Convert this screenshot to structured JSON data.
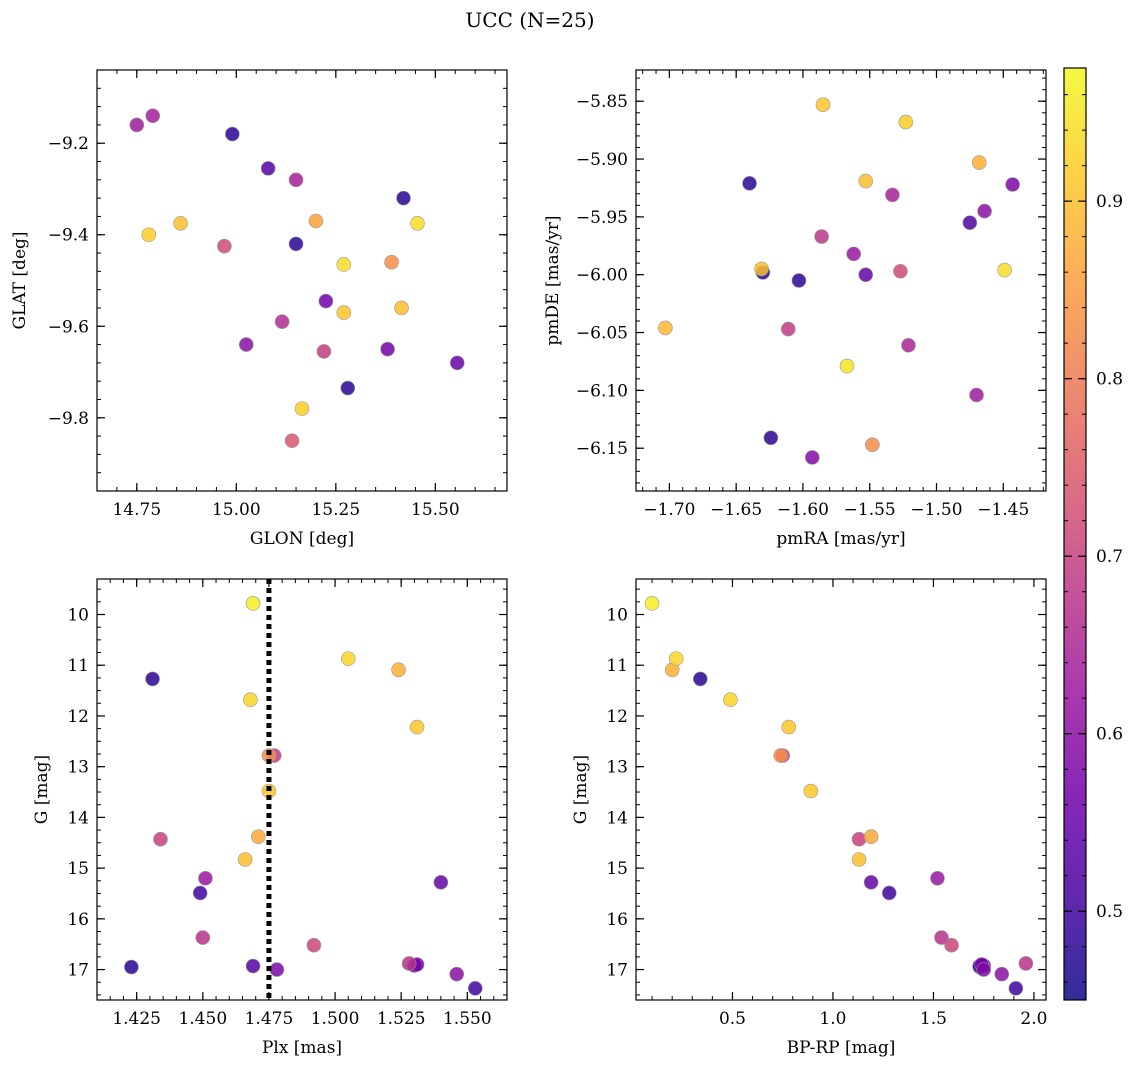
{
  "figure": {
    "title": "UCC (N=25)"
  },
  "colorbar": {
    "range": [
      0.45,
      0.975
    ],
    "ticks": [
      0.5,
      0.6,
      0.7,
      0.8,
      0.9
    ],
    "tick_labels": [
      "0.5",
      "0.6",
      "0.7",
      "0.8",
      "0.9"
    ],
    "colormap": [
      "#0d0887",
      "#46039f",
      "#7201a8",
      "#9c179e",
      "#bd3786",
      "#d8576b",
      "#ed7953",
      "#fb9f3a",
      "#fdca26",
      "#f0f921"
    ]
  },
  "chart_data": [
    {
      "type": "scatter",
      "id": "glon-glat",
      "xlabel": "GLON [deg]",
      "ylabel": "GLAT [deg]",
      "xlim": [
        14.65,
        15.68
      ],
      "ylim": [
        -9.96,
        -9.04
      ],
      "xticks": [
        14.75,
        15.0,
        15.25,
        15.5
      ],
      "xtick_labels": [
        "14.75",
        "15.00",
        "15.25",
        "15.50"
      ],
      "yticks": [
        -9.2,
        -9.4,
        -9.6,
        -9.8
      ],
      "ytick_labels": [
        "−9.2",
        "−9.4",
        "−9.6",
        "−9.8"
      ],
      "points": [
        {
          "x": 14.75,
          "y": -9.16,
          "c": 0.63
        },
        {
          "x": 14.79,
          "y": -9.14,
          "c": 0.64
        },
        {
          "x": 14.99,
          "y": -9.18,
          "c": 0.48
        },
        {
          "x": 15.08,
          "y": -9.255,
          "c": 0.53
        },
        {
          "x": 15.15,
          "y": -9.28,
          "c": 0.64
        },
        {
          "x": 15.42,
          "y": -9.32,
          "c": 0.48
        },
        {
          "x": 14.78,
          "y": -9.4,
          "c": 0.92
        },
        {
          "x": 14.86,
          "y": -9.375,
          "c": 0.9
        },
        {
          "x": 14.97,
          "y": -9.425,
          "c": 0.72
        },
        {
          "x": 15.15,
          "y": -9.42,
          "c": 0.48
        },
        {
          "x": 15.2,
          "y": -9.37,
          "c": 0.86
        },
        {
          "x": 15.27,
          "y": -9.465,
          "c": 0.94
        },
        {
          "x": 15.39,
          "y": -9.46,
          "c": 0.83
        },
        {
          "x": 15.455,
          "y": -9.375,
          "c": 0.94
        },
        {
          "x": 15.225,
          "y": -9.545,
          "c": 0.56
        },
        {
          "x": 15.27,
          "y": -9.57,
          "c": 0.91
        },
        {
          "x": 15.415,
          "y": -9.56,
          "c": 0.9
        },
        {
          "x": 15.115,
          "y": -9.59,
          "c": 0.66
        },
        {
          "x": 15.025,
          "y": -9.64,
          "c": 0.6
        },
        {
          "x": 15.22,
          "y": -9.655,
          "c": 0.69
        },
        {
          "x": 15.38,
          "y": -9.65,
          "c": 0.57
        },
        {
          "x": 15.555,
          "y": -9.68,
          "c": 0.55
        },
        {
          "x": 15.28,
          "y": -9.735,
          "c": 0.48
        },
        {
          "x": 15.165,
          "y": -9.78,
          "c": 0.92
        },
        {
          "x": 15.14,
          "y": -9.85,
          "c": 0.74
        }
      ]
    },
    {
      "type": "scatter",
      "id": "pmra-pmde",
      "xlabel": "pmRA [mas/yr]",
      "ylabel": "pmDE [mas/yr]",
      "xlim": [
        -1.725,
        -1.418
      ],
      "ylim": [
        -6.187,
        -5.823
      ],
      "xticks": [
        -1.7,
        -1.65,
        -1.6,
        -1.55,
        -1.5,
        -1.45
      ],
      "xtick_labels": [
        "−1.70",
        "−1.65",
        "−1.60",
        "−1.55",
        "−1.50",
        "−1.45"
      ],
      "yticks": [
        -5.85,
        -5.9,
        -5.95,
        -6.0,
        -6.05,
        -6.1,
        -6.15
      ],
      "ytick_labels": [
        "−5.85",
        "−5.90",
        "−5.95",
        "−6.00",
        "−6.05",
        "−6.10",
        "−6.15"
      ],
      "points": [
        {
          "x": -1.585,
          "y": -5.853,
          "c": 0.91
        },
        {
          "x": -1.523,
          "y": -5.868,
          "c": 0.92
        },
        {
          "x": -1.468,
          "y": -5.903,
          "c": 0.88
        },
        {
          "x": -1.64,
          "y": -5.921,
          "c": 0.48
        },
        {
          "x": -1.553,
          "y": -5.919,
          "c": 0.9
        },
        {
          "x": -1.533,
          "y": -5.931,
          "c": 0.64
        },
        {
          "x": -1.443,
          "y": -5.922,
          "c": 0.58
        },
        {
          "x": -1.475,
          "y": -5.955,
          "c": 0.52
        },
        {
          "x": -1.464,
          "y": -5.945,
          "c": 0.6
        },
        {
          "x": -1.586,
          "y": -5.967,
          "c": 0.68
        },
        {
          "x": -1.562,
          "y": -5.982,
          "c": 0.62
        },
        {
          "x": -1.631,
          "y": -5.995,
          "c": 0.9
        },
        {
          "x": -1.63,
          "y": -5.998,
          "c": 0.48
        },
        {
          "x": -1.603,
          "y": -6.005,
          "c": 0.48
        },
        {
          "x": -1.553,
          "y": -6.0,
          "c": 0.55
        },
        {
          "x": -1.527,
          "y": -5.997,
          "c": 0.72
        },
        {
          "x": -1.449,
          "y": -5.996,
          "c": 0.94
        },
        {
          "x": -1.703,
          "y": -6.046,
          "c": 0.89
        },
        {
          "x": -1.611,
          "y": -6.047,
          "c": 0.69
        },
        {
          "x": -1.521,
          "y": -6.061,
          "c": 0.65
        },
        {
          "x": -1.567,
          "y": -6.079,
          "c": 0.95
        },
        {
          "x": -1.47,
          "y": -6.104,
          "c": 0.63
        },
        {
          "x": -1.624,
          "y": -6.141,
          "c": 0.48
        },
        {
          "x": -1.548,
          "y": -6.147,
          "c": 0.83
        },
        {
          "x": -1.593,
          "y": -6.158,
          "c": 0.59
        }
      ]
    },
    {
      "type": "scatter",
      "id": "plx-g",
      "xlabel": "Plx [mas]",
      "ylabel": "G [mag]",
      "xlim": [
        1.41,
        1.565
      ],
      "ylim": [
        17.6,
        9.3
      ],
      "y_inverted": true,
      "xticks": [
        1.425,
        1.45,
        1.475,
        1.5,
        1.525,
        1.55
      ],
      "xtick_labels": [
        "1.425",
        "1.450",
        "1.475",
        "1.500",
        "1.525",
        "1.550"
      ],
      "yticks": [
        10,
        11,
        12,
        13,
        14,
        15,
        16,
        17
      ],
      "ytick_labels": [
        "10",
        "11",
        "12",
        "13",
        "14",
        "15",
        "16",
        "17"
      ],
      "vline": 1.475,
      "points": [
        {
          "x": 1.469,
          "y": 9.78,
          "c": 0.96
        },
        {
          "x": 1.431,
          "y": 11.27,
          "c": 0.48
        },
        {
          "x": 1.505,
          "y": 10.87,
          "c": 0.93
        },
        {
          "x": 1.524,
          "y": 11.09,
          "c": 0.88
        },
        {
          "x": 1.468,
          "y": 11.68,
          "c": 0.93
        },
        {
          "x": 1.531,
          "y": 12.22,
          "c": 0.91
        },
        {
          "x": 1.477,
          "y": 12.78,
          "c": 0.69
        },
        {
          "x": 1.475,
          "y": 12.78,
          "c": 0.83
        },
        {
          "x": 1.475,
          "y": 13.48,
          "c": 0.91
        },
        {
          "x": 1.471,
          "y": 14.38,
          "c": 0.87
        },
        {
          "x": 1.434,
          "y": 14.43,
          "c": 0.7
        },
        {
          "x": 1.466,
          "y": 14.83,
          "c": 0.9
        },
        {
          "x": 1.451,
          "y": 15.2,
          "c": 0.62
        },
        {
          "x": 1.449,
          "y": 15.49,
          "c": 0.5
        },
        {
          "x": 1.54,
          "y": 15.28,
          "c": 0.55
        },
        {
          "x": 1.45,
          "y": 16.37,
          "c": 0.67
        },
        {
          "x": 1.492,
          "y": 16.52,
          "c": 0.71
        },
        {
          "x": 1.423,
          "y": 16.95,
          "c": 0.48
        },
        {
          "x": 1.469,
          "y": 16.93,
          "c": 0.53
        },
        {
          "x": 1.478,
          "y": 17.0,
          "c": 0.58
        },
        {
          "x": 1.528,
          "y": 16.88,
          "c": 0.67
        },
        {
          "x": 1.531,
          "y": 16.9,
          "c": 0.57
        },
        {
          "x": 1.53,
          "y": 16.92,
          "c": 0.55
        },
        {
          "x": 1.546,
          "y": 17.09,
          "c": 0.6
        },
        {
          "x": 1.553,
          "y": 17.37,
          "c": 0.5
        }
      ]
    },
    {
      "type": "scatter",
      "id": "bprp-g",
      "xlabel": "BP-RP [mag]",
      "ylabel": "G [mag]",
      "xlim": [
        0.02,
        2.06
      ],
      "ylim": [
        17.6,
        9.3
      ],
      "y_inverted": true,
      "xticks": [
        0.5,
        1.0,
        1.5,
        2.0
      ],
      "xtick_labels": [
        "0.5",
        "1.0",
        "1.5",
        "2.0"
      ],
      "yticks": [
        10,
        11,
        12,
        13,
        14,
        15,
        16,
        17
      ],
      "ytick_labels": [
        "10",
        "11",
        "12",
        "13",
        "14",
        "15",
        "16",
        "17"
      ],
      "points": [
        {
          "x": 0.1,
          "y": 9.78,
          "c": 0.96
        },
        {
          "x": 0.22,
          "y": 10.87,
          "c": 0.93
        },
        {
          "x": 0.2,
          "y": 11.09,
          "c": 0.88
        },
        {
          "x": 0.34,
          "y": 11.27,
          "c": 0.48
        },
        {
          "x": 0.49,
          "y": 11.68,
          "c": 0.93
        },
        {
          "x": 0.78,
          "y": 12.22,
          "c": 0.91
        },
        {
          "x": 0.75,
          "y": 12.78,
          "c": 0.69
        },
        {
          "x": 0.74,
          "y": 12.78,
          "c": 0.83
        },
        {
          "x": 0.89,
          "y": 13.48,
          "c": 0.91
        },
        {
          "x": 1.13,
          "y": 14.43,
          "c": 0.7
        },
        {
          "x": 1.19,
          "y": 14.38,
          "c": 0.87
        },
        {
          "x": 1.13,
          "y": 14.83,
          "c": 0.9
        },
        {
          "x": 1.19,
          "y": 15.28,
          "c": 0.55
        },
        {
          "x": 1.28,
          "y": 15.49,
          "c": 0.5
        },
        {
          "x": 1.52,
          "y": 15.2,
          "c": 0.62
        },
        {
          "x": 1.54,
          "y": 16.37,
          "c": 0.67
        },
        {
          "x": 1.59,
          "y": 16.52,
          "c": 0.71
        },
        {
          "x": 1.73,
          "y": 16.93,
          "c": 0.53
        },
        {
          "x": 1.74,
          "y": 16.9,
          "c": 0.57
        },
        {
          "x": 1.75,
          "y": 16.92,
          "c": 0.55
        },
        {
          "x": 1.75,
          "y": 17.0,
          "c": 0.58
        },
        {
          "x": 1.84,
          "y": 17.09,
          "c": 0.6
        },
        {
          "x": 1.96,
          "y": 16.88,
          "c": 0.67
        },
        {
          "x": 1.91,
          "y": 17.37,
          "c": 0.5
        },
        {
          "x": 1.73,
          "y": 16.95,
          "c": 0.48
        }
      ]
    }
  ]
}
